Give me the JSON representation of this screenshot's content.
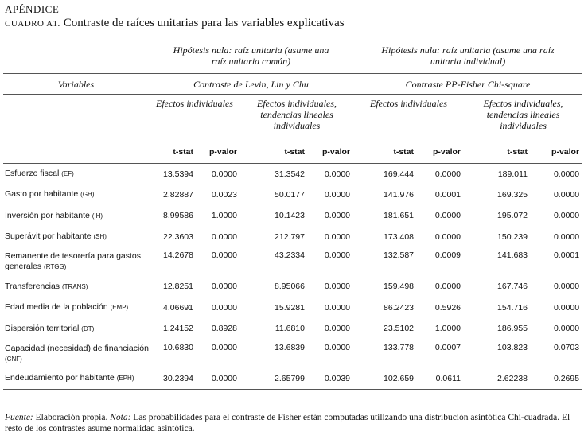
{
  "header": {
    "section": "APÉNDICE",
    "label": "CUADRO A1.",
    "title": "Contraste de raíces unitarias para las variables explicativas"
  },
  "table": {
    "group_headers": [
      "Hipótesis nula: raíz unitaria (asume una raíz unitaria común)",
      "Hipótesis nula: raíz unitaria (asume una raíz unitaria individual)"
    ],
    "variables_label": "Variables",
    "tests": [
      "Contraste de Levin, Lin y Chu",
      "Contraste PP-Fisher Chi-square"
    ],
    "sub_headers": [
      "Efectos individuales",
      "Efectos individuales, tendencias lineales individuales",
      "Efectos individuales",
      "Efectos individuales, tendencias lineales individuales"
    ],
    "columns": [
      "t-stat",
      "p-valor",
      "t-stat",
      "p-valor",
      "t-stat",
      "p-valor",
      "t-stat",
      "p-valor"
    ],
    "rows": [
      {
        "name": "Esfuerzo fiscal",
        "abbr": "(EF)",
        "values": [
          "13.5394",
          "0.0000",
          "31.3542",
          "0.0000",
          "169.444",
          "0.0000",
          "189.011",
          "0.0000"
        ]
      },
      {
        "name": "Gasto por habitante",
        "abbr": "(GH)",
        "values": [
          "2.82887",
          "0.0023",
          "50.0177",
          "0.0000",
          "141.976",
          "0.0001",
          "169.325",
          "0.0000"
        ]
      },
      {
        "name": "Inversión por habitante",
        "abbr": "(IH)",
        "values": [
          "8.99586",
          "1.0000",
          "10.1423",
          "0.0000",
          "181.651",
          "0.0000",
          "195.072",
          "0.0000"
        ]
      },
      {
        "name": "Superávit por habitante",
        "abbr": "(SH)",
        "values": [
          "22.3603",
          "0.0000",
          "212.797",
          "0.0000",
          "173.408",
          "0.0000",
          "150.239",
          "0.0000"
        ]
      },
      {
        "name": "Remanente de tesorería para gastos generales",
        "abbr": "(RTGG)",
        "values": [
          "14.2678",
          "0.0000",
          "43.2334",
          "0.0000",
          "132.587",
          "0.0009",
          "141.683",
          "0.0001"
        ]
      },
      {
        "name": "Transferencias",
        "abbr": "(TRANS)",
        "values": [
          "12.8251",
          "0.0000",
          "8.95066",
          "0.0000",
          "159.498",
          "0.0000",
          "167.746",
          "0.0000"
        ]
      },
      {
        "name": "Edad media de la población",
        "abbr": "(EMP)",
        "values": [
          "4.06691",
          "0.0000",
          "15.9281",
          "0.0000",
          "86.2423",
          "0.5926",
          "154.716",
          "0.0000"
        ]
      },
      {
        "name": "Dispersión territorial",
        "abbr": "(DT)",
        "values": [
          "1.24152",
          "0.8928",
          "11.6810",
          "0.0000",
          "23.5102",
          "1.0000",
          "186.955",
          "0.0000"
        ]
      },
      {
        "name": "Capacidad (necesidad) de financiación",
        "abbr": "(CNF)",
        "values": [
          "10.6830",
          "0.0000",
          "13.6839",
          "0.0000",
          "133.778",
          "0.0007",
          "103.823",
          "0.0703"
        ]
      },
      {
        "name": "Endeudamiento por habitante",
        "abbr": "(EPH)",
        "values": [
          "30.2394",
          "0.0000",
          "2.65799",
          "0.0039",
          "102.659",
          "0.0611",
          "2.62238",
          "0.2695"
        ]
      }
    ]
  },
  "footer": {
    "source_label": "Fuente:",
    "source": "Elaboración propia.",
    "note_label": "Nota:",
    "note": "Las probabilidades para el contraste de Fisher están computadas utilizando una distribución asintótica Chi-cuadrada. El resto de los contrastes asume normalidad asintótica."
  }
}
